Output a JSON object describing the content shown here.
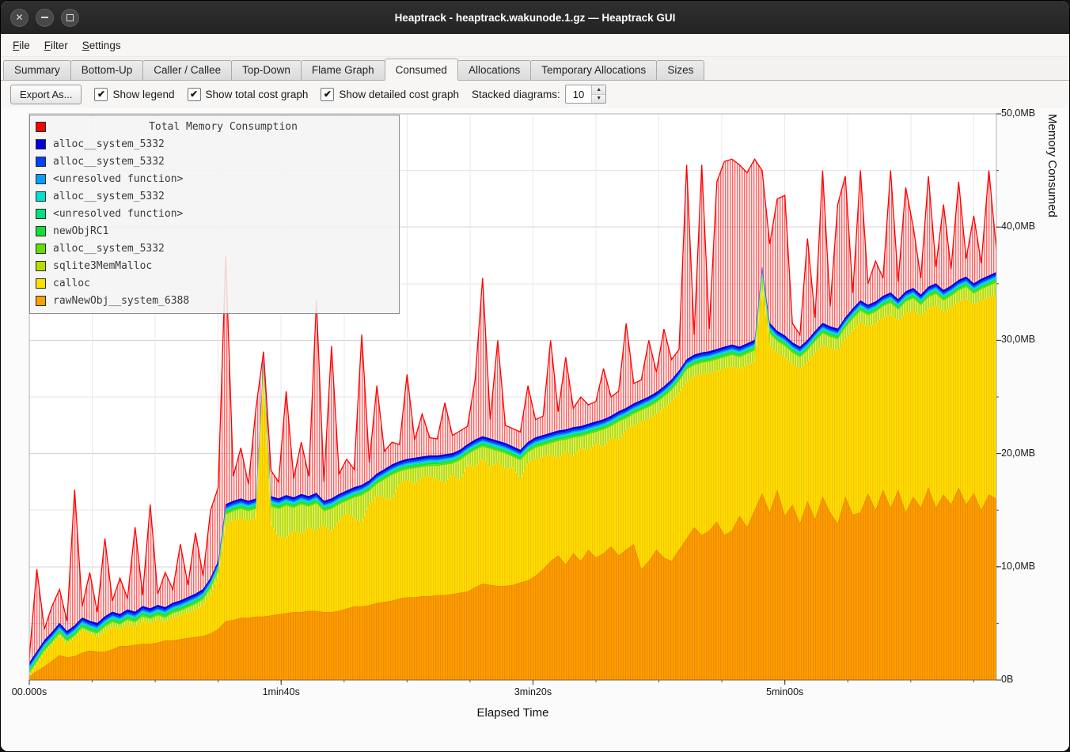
{
  "window": {
    "title": "Heaptrack - heaptrack.wakunode.1.gz — Heaptrack GUI"
  },
  "menubar": {
    "items": [
      {
        "label": "File",
        "underline": 0
      },
      {
        "label": "Filter",
        "underline": 0
      },
      {
        "label": "Settings",
        "underline": 0
      }
    ]
  },
  "tabs": [
    {
      "label": "Summary",
      "active": false
    },
    {
      "label": "Bottom-Up",
      "active": false
    },
    {
      "label": "Caller / Callee",
      "active": false
    },
    {
      "label": "Top-Down",
      "active": false
    },
    {
      "label": "Flame Graph",
      "active": false
    },
    {
      "label": "Consumed",
      "active": true
    },
    {
      "label": "Allocations",
      "active": false
    },
    {
      "label": "Temporary Allocations",
      "active": false
    },
    {
      "label": "Sizes",
      "active": false
    }
  ],
  "toolbar": {
    "export_label": "Export As...",
    "checkboxes": [
      {
        "label": "Show legend",
        "checked": true
      },
      {
        "label": "Show total cost graph",
        "checked": true
      },
      {
        "label": "Show detailed cost graph",
        "checked": true
      }
    ],
    "stacked_label": "Stacked diagrams:",
    "stacked_value": "10"
  },
  "chart_data": {
    "type": "area",
    "title": "Total Memory Consumption",
    "xlabel": "Elapsed Time",
    "ylabel": "Memory Consumed",
    "unit": "MB",
    "x_range": [
      0,
      384
    ],
    "y_range": [
      0,
      50
    ],
    "x_start": 0,
    "x_step_s": 3,
    "grid": {
      "x_minor": 25,
      "y_minor": 5
    },
    "legend_position": "top-left",
    "x_ticks": [
      {
        "t": 0,
        "label": "00.000s"
      },
      {
        "t": 100,
        "label": "1min40s"
      },
      {
        "t": 200,
        "label": "3min20s"
      },
      {
        "t": 300,
        "label": "5min00s"
      }
    ],
    "y_ticks": [
      {
        "v": 0,
        "label": "0B"
      },
      {
        "v": 10,
        "label": "10,0MB"
      },
      {
        "v": 20,
        "label": "20,0MB"
      },
      {
        "v": 30,
        "label": "30,0MB"
      },
      {
        "v": 40,
        "label": "40,0MB"
      },
      {
        "v": 50,
        "label": "50,0MB"
      }
    ],
    "series": [
      {
        "role": "total",
        "label": "Total Memory Consumption",
        "color": "#ff0000",
        "stripe": "rgba(255,0,0,0.58)",
        "values": [
          2.0,
          9.8,
          4.5,
          6.5,
          8.0,
          5.2,
          16.8,
          6.5,
          9.5,
          6.0,
          12.5,
          7.0,
          9.0,
          7.2,
          13.5,
          7.5,
          15.5,
          7.6,
          9.5,
          8.0,
          12.0,
          8.4,
          13.0,
          9.2,
          15.0,
          17.0,
          37.5,
          18.0,
          20.5,
          17.3,
          24.0,
          29.0,
          18.5,
          17.5,
          25.5,
          17.8,
          21.0,
          18.0,
          33.5,
          17.5,
          29.5,
          18.2,
          19.5,
          18.6,
          30.5,
          19.2,
          26.0,
          20.2,
          21.0,
          20.8,
          27.0,
          21.2,
          23.5,
          21.4,
          21.3,
          24.5,
          21.6,
          22.0,
          22.4,
          26.5,
          35.5,
          23.0,
          30.0,
          22.5,
          22.2,
          21.9,
          26.0,
          23.0,
          23.3,
          30.0,
          23.7,
          28.5,
          24.0,
          25.0,
          24.3,
          24.6,
          27.5,
          25.0,
          25.5,
          31.5,
          26.2,
          26.5,
          30.0,
          27.2,
          31.0,
          28.3,
          29.2,
          45.5,
          30.5,
          45.5,
          31.0,
          44.0,
          45.8,
          46.0,
          45.5,
          44.8,
          46.0,
          45.0,
          38.5,
          42.5,
          42.8,
          31.5,
          30.5,
          39.0,
          32.0,
          45.0,
          33.0,
          42.0,
          44.5,
          34.2,
          45.0,
          35.0,
          37.0,
          35.5,
          45.0,
          35.2,
          43.5,
          40.0,
          35.5,
          44.5,
          36.5,
          42.0,
          36.3,
          44.0,
          37.2,
          41.0,
          36.8,
          45.0,
          38.0
        ]
      },
      {
        "label": "alloc__system_5332",
        "color": "#0000e0",
        "const": 0.2
      },
      {
        "label": "alloc__system_5332",
        "color": "#0040ff",
        "const": 0.15
      },
      {
        "label": "<unresolved function>",
        "color": "#00a0ff",
        "const": 0.12
      },
      {
        "label": "alloc__system_5332",
        "color": "#00e0d0",
        "const": 0.1
      },
      {
        "label": "<unresolved function>",
        "color": "#00e080",
        "const": 0.1
      },
      {
        "label": "newObjRC1",
        "color": "#10e030",
        "const": 0.12
      },
      {
        "label": "alloc__system_5332",
        "color": "#60e000",
        "const": 0.15
      },
      {
        "label": "sqlite3MemMalloc",
        "color": "#b8dc00",
        "stripe": "rgba(255,255,255,0.5)",
        "values": [
          0.2,
          0.2,
          0.2,
          0.2,
          0.2,
          0.2,
          0.2,
          0.2,
          0.2,
          0.4,
          0.4,
          0.4,
          0.4,
          0.4,
          0.4,
          0.4,
          0.4,
          0.4,
          0.4,
          0.4,
          0.4,
          0.5,
          0.5,
          0.5,
          0.5,
          0.5,
          0.8,
          0.8,
          0.8,
          0.8,
          0.8,
          0.8,
          1.5,
          2.5,
          2.8,
          2.0,
          2.6,
          1.8,
          2.4,
          1.2,
          2.0,
          1.4,
          1.0,
          1.8,
          2.4,
          1.2,
          1.0,
          1.6,
          2.2,
          1.0,
          0.9,
          1.4,
          0.9,
          0.9,
          1.2,
          1.6,
          0.9,
          1.8,
          0.9,
          1.5,
          1.0,
          1.6,
          0.9,
          1.4,
          0.9,
          1.7,
          0.9,
          1.0,
          1.0,
          1.0,
          1.5,
          1.0,
          1.6,
          1.0,
          1.4,
          1.0,
          1.5,
          1.0,
          1.6,
          1.0,
          1.0,
          1.0,
          1.0,
          1.0,
          1.0,
          1.0,
          1.0,
          1.0,
          1.0,
          1.0,
          1.0,
          1.0,
          1.0,
          1.0,
          1.0,
          1.0,
          1.0,
          1.0,
          1.0,
          1.0,
          1.0,
          1.0,
          1.0,
          1.0,
          1.0,
          1.0,
          1.0,
          1.0,
          1.0,
          1.0,
          1.0,
          1.0,
          1.0,
          1.0,
          1.0,
          1.0,
          1.0,
          1.0,
          1.0,
          1.0,
          1.0,
          1.0,
          1.0,
          1.0,
          1.0,
          1.0,
          1.0,
          1.0,
          1.0
        ]
      },
      {
        "label": "calloc",
        "color": "#ffe000",
        "stripe": "rgba(230,150,0,0.35)",
        "values": [
          0.1,
          0.6,
          1.2,
          1.4,
          1.7,
          1.2,
          1.6,
          2.0,
          1.5,
          1.2,
          1.8,
          2.0,
          1.5,
          1.9,
          1.6,
          2.0,
          1.8,
          2.0,
          1.6,
          2.0,
          2.1,
          2.2,
          2.4,
          2.7,
          3.5,
          4.6,
          8.6,
          8.8,
          8.8,
          8.6,
          8.7,
          21.2,
          8.1,
          6.8,
          6.7,
          7.2,
          6.9,
          7.4,
          7.1,
          7.7,
          7.1,
          8.0,
          8.5,
          7.8,
          7.4,
          8.9,
          9.5,
          9.2,
          8.9,
          10.2,
          10.4,
          10.0,
          10.5,
          10.6,
          10.2,
          9.9,
          10.6,
          9.9,
          11.2,
          10.6,
          11.1,
          10.4,
          11.0,
          10.3,
          10.4,
          9.1,
          10.4,
          10.3,
          9.9,
          9.4,
          8.6,
          10.0,
          8.6,
          10.0,
          8.8,
          10.1,
          9.4,
          9.6,
          10.2,
          10.6,
          10.5,
          13.0,
          12.6,
          12.0,
          13.2,
          14.1,
          13.9,
          13.9,
          13.3,
          14.2,
          13.9,
          13.3,
          14.7,
          14.5,
          13.0,
          14.3,
          13.1,
          18.1,
          14.8,
          12.1,
          14.0,
          12.4,
          13.7,
          12.3,
          14.7,
          13.4,
          14.5,
          15.3,
          13.9,
          16.3,
          16.8,
          14.7,
          16.5,
          15.2,
          17.1,
          14.9,
          17.6,
          16.5,
          16.9,
          15.8,
          17.9,
          16.1,
          17.4,
          16.4,
          18.2,
          16.6,
          18.5,
          17.4,
          18.1
        ]
      },
      {
        "label": "rawNewObj__system_6388",
        "color": "#ffa000",
        "stripe": "rgba(210,105,0,0.4)",
        "edge": "#e07800",
        "values": [
          0.3,
          0.8,
          1.2,
          1.7,
          2.2,
          2.0,
          2.1,
          2.4,
          2.6,
          2.5,
          2.5,
          2.7,
          3.0,
          3.0,
          3.1,
          3.2,
          3.2,
          3.3,
          3.5,
          3.5,
          3.6,
          3.7,
          3.8,
          3.9,
          4.1,
          4.5,
          5.2,
          5.3,
          5.5,
          5.5,
          5.6,
          5.6,
          5.7,
          5.8,
          5.9,
          6.0,
          6.0,
          6.1,
          6.1,
          6.0,
          6.0,
          6.1,
          6.3,
          6.5,
          6.5,
          6.6,
          6.8,
          6.9,
          7.0,
          7.2,
          7.3,
          7.3,
          7.4,
          7.4,
          7.5,
          7.5,
          7.6,
          7.7,
          7.8,
          8.2,
          8.5,
          8.4,
          8.3,
          8.3,
          8.4,
          8.6,
          8.8,
          9.2,
          9.8,
          10.5,
          11.0,
          10.2,
          11.2,
          10.5,
          11.5,
          10.8,
          11.2,
          11.8,
          11.0,
          11.5,
          12.0,
          9.8,
          10.5,
          11.5,
          10.8,
          10.5,
          11.5,
          12.5,
          13.5,
          12.8,
          13.2,
          14.0,
          12.8,
          13.2,
          14.5,
          13.5,
          15.0,
          16.5,
          14.8,
          16.8,
          14.5,
          15.5,
          13.8,
          15.8,
          14.2,
          16.2,
          14.8,
          13.8,
          16.2,
          14.6,
          14.8,
          16.5,
          15.0,
          16.8,
          15.2,
          16.8,
          14.8,
          16.2,
          15.2,
          17.0,
          15.2,
          16.4,
          15.5,
          17.0,
          15.5,
          16.5,
          15.0,
          16.4,
          16.0
        ]
      }
    ]
  }
}
